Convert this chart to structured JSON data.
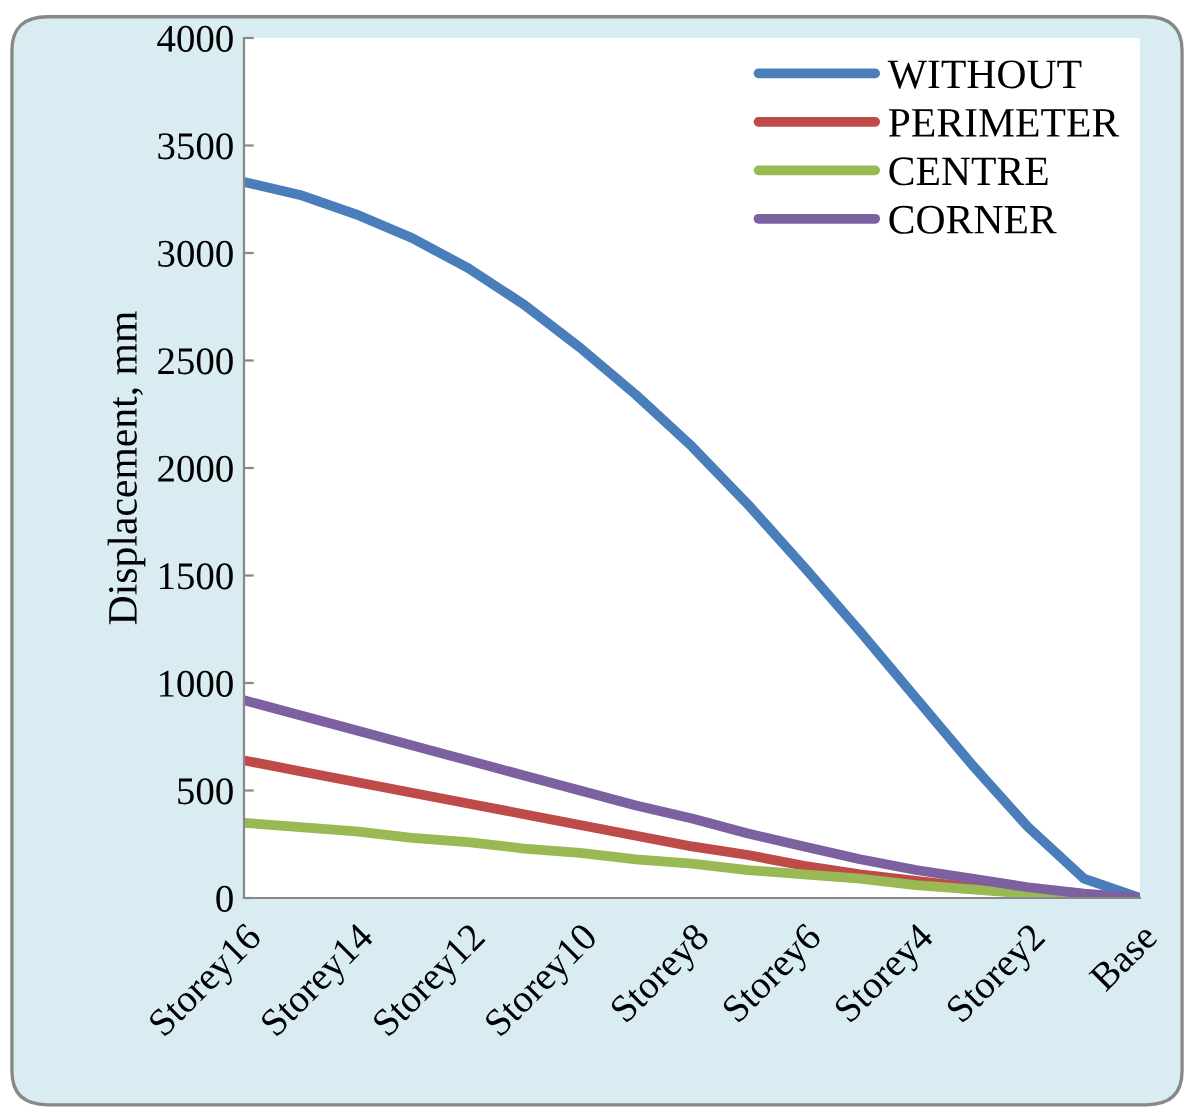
{
  "chart_data": {
    "type": "line",
    "ylabel": "Displacement, mm",
    "categories": [
      "Storey16",
      null,
      "Storey14",
      null,
      "Storey12",
      null,
      "Storey10",
      null,
      "Storey8",
      null,
      "Storey6",
      null,
      "Storey4",
      null,
      "Storey2",
      null,
      "Base"
    ],
    "series": [
      {
        "name": "WITHOUT",
        "color": "#4a7ebb",
        "values": [
          3330,
          3270,
          3180,
          3070,
          2930,
          2760,
          2560,
          2340,
          2100,
          1830,
          1540,
          1240,
          930,
          620,
          330,
          90,
          0
        ]
      },
      {
        "name": "PERIMETER",
        "color": "#be4b48",
        "values": [
          640,
          590,
          540,
          490,
          440,
          390,
          340,
          290,
          240,
          200,
          150,
          110,
          80,
          50,
          20,
          null,
          null
        ]
      },
      {
        "name": "CENTRE",
        "color": "#98b954",
        "values": [
          350,
          330,
          310,
          280,
          260,
          230,
          210,
          180,
          160,
          130,
          110,
          90,
          60,
          40,
          20,
          10,
          0
        ]
      },
      {
        "name": "CORNER",
        "color": "#7d60a0",
        "values": [
          920,
          850,
          780,
          710,
          640,
          570,
          500,
          430,
          370,
          300,
          240,
          180,
          130,
          90,
          50,
          20,
          0
        ]
      }
    ],
    "ylim": [
      0,
      4000
    ],
    "yticks": [
      0,
      500,
      1000,
      1500,
      2000,
      2500,
      3000,
      3500,
      4000
    ],
    "grid": false,
    "legend": "top right",
    "marker": "none",
    "line_style": "solid"
  }
}
